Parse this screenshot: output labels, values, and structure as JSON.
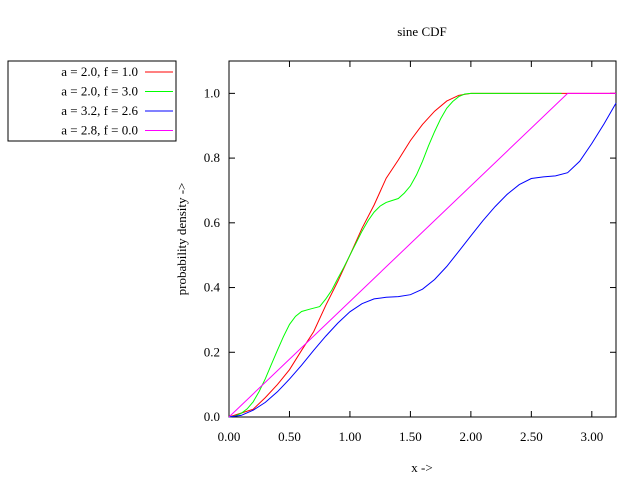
{
  "chart_data": {
    "type": "line",
    "title": "sine CDF",
    "xlabel": "x ->",
    "ylabel": "probability density ->",
    "xlim": [
      0,
      3.2
    ],
    "ylim": [
      0,
      1.1
    ],
    "xticks": [
      {
        "value": 0,
        "label": "0.00"
      },
      {
        "value": 0.5,
        "label": "0.50"
      },
      {
        "value": 1.0,
        "label": "1.00"
      },
      {
        "value": 1.5,
        "label": "1.50"
      },
      {
        "value": 2.0,
        "label": "2.00"
      },
      {
        "value": 2.5,
        "label": "2.50"
      },
      {
        "value": 3.0,
        "label": "3.00"
      }
    ],
    "yticks": [
      {
        "value": 0,
        "label": "0.0"
      },
      {
        "value": 0.2,
        "label": "0.2"
      },
      {
        "value": 0.4,
        "label": "0.4"
      },
      {
        "value": 0.6,
        "label": "0.6"
      },
      {
        "value": 0.8,
        "label": "0.8"
      },
      {
        "value": 1.0,
        "label": "1.0"
      }
    ],
    "grid": false,
    "legend_position": "outside-top-left",
    "series": [
      {
        "name": "a = 2.0, f = 1.0",
        "color": "#ff0000",
        "x": [
          0,
          0.1,
          0.2,
          0.3,
          0.4,
          0.5,
          0.6,
          0.7,
          0.8,
          0.9,
          1.0,
          1.1,
          1.2,
          1.3,
          1.4,
          1.5,
          1.6,
          1.7,
          1.8,
          1.9,
          2.0,
          2.2,
          2.4,
          2.6,
          2.8,
          3.0,
          3.2
        ],
        "y": [
          0,
          0.012,
          0.024,
          0.06,
          0.1,
          0.146,
          0.206,
          0.264,
          0.345,
          0.419,
          0.5,
          0.583,
          0.655,
          0.738,
          0.794,
          0.854,
          0.904,
          0.945,
          0.976,
          0.994,
          1.0,
          1.0,
          1.0,
          1.0,
          1.0,
          1.0,
          1.0
        ]
      },
      {
        "name": "a = 2.0, f = 3.0",
        "color": "#00ff00",
        "x": [
          0,
          0.05,
          0.1,
          0.15,
          0.2,
          0.25,
          0.3,
          0.35,
          0.4,
          0.45,
          0.5,
          0.55,
          0.6,
          0.667,
          0.75,
          0.8,
          0.85,
          0.9,
          0.95,
          1.0,
          1.05,
          1.1,
          1.15,
          1.2,
          1.25,
          1.3,
          1.333,
          1.4,
          1.45,
          1.5,
          1.55,
          1.6,
          1.65,
          1.7,
          1.75,
          1.8,
          1.85,
          1.9,
          1.95,
          2.0,
          2.75
        ],
        "y": [
          0,
          0.003,
          0.011,
          0.025,
          0.047,
          0.079,
          0.118,
          0.162,
          0.206,
          0.248,
          0.286,
          0.311,
          0.326,
          0.333,
          0.341,
          0.365,
          0.392,
          0.428,
          0.463,
          0.5,
          0.537,
          0.574,
          0.607,
          0.633,
          0.652,
          0.663,
          0.667,
          0.675,
          0.692,
          0.714,
          0.748,
          0.79,
          0.838,
          0.882,
          0.921,
          0.954,
          0.975,
          0.99,
          0.998,
          1.0,
          1.0
        ]
      },
      {
        "name": "a = 3.2, f = 2.6",
        "color": "#0000ff",
        "x": [
          0,
          0.1,
          0.2,
          0.3,
          0.4,
          0.5,
          0.6,
          0.7,
          0.8,
          0.9,
          1.0,
          1.1,
          1.2,
          1.3,
          1.4,
          1.5,
          1.6,
          1.7,
          1.8,
          1.9,
          2.0,
          2.1,
          2.2,
          2.3,
          2.4,
          2.5,
          2.6,
          2.7,
          2.8,
          2.9,
          3.0,
          3.1,
          3.2
        ],
        "y": [
          0,
          0.005,
          0.021,
          0.045,
          0.078,
          0.117,
          0.16,
          0.206,
          0.25,
          0.29,
          0.325,
          0.35,
          0.365,
          0.37,
          0.372,
          0.378,
          0.395,
          0.425,
          0.465,
          0.512,
          0.56,
          0.607,
          0.65,
          0.688,
          0.718,
          0.737,
          0.742,
          0.745,
          0.755,
          0.79,
          0.845,
          0.905,
          0.97
        ]
      },
      {
        "name": "a = 2.8, f = 0.0",
        "color": "#ff00ff",
        "x": [
          0,
          2.8,
          3.2
        ],
        "y": [
          0,
          1.0,
          1.0
        ]
      }
    ]
  }
}
